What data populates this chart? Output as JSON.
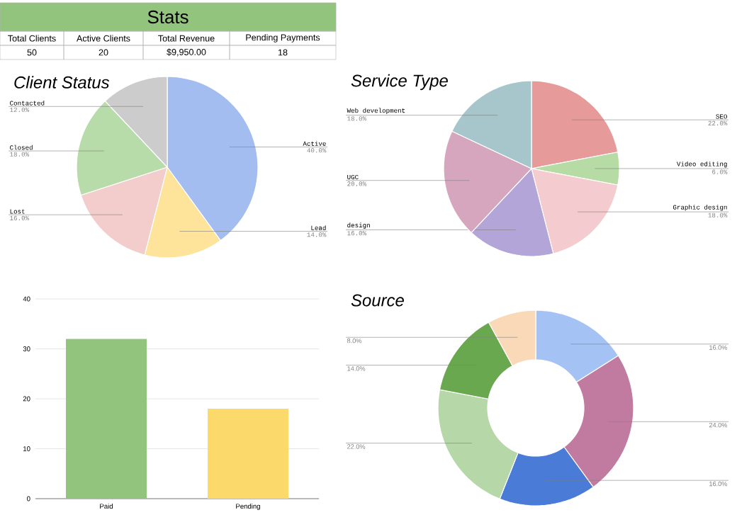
{
  "chart_data": [
    {
      "type": "other",
      "title": "Stats",
      "color": "#93c47d",
      "categories": [
        "Total Clients",
        "Active Clients",
        "Total Revenue",
        "Pending Payments"
      ],
      "value_labels": [
        "50",
        "20",
        "$9,950.00",
        "18"
      ]
    },
    {
      "type": "pie",
      "title": "Client Status",
      "categories": [
        "Active",
        "Lead",
        "Lost",
        "Closed",
        "Contacted"
      ],
      "values": [
        40,
        14,
        16,
        18,
        12
      ],
      "value_labels": [
        "40.0%",
        "14.0%",
        "16.0%",
        "18.0%",
        "12.0%"
      ],
      "colors": [
        "#a4bdf0",
        "#fde49a",
        "#f3cccc",
        "#b7dba9",
        "#cccccc"
      ]
    },
    {
      "type": "pie",
      "title": "Service Type",
      "categories": [
        "SEO",
        "Video editing",
        "Graphic design",
        "design",
        "UGC",
        "Web development"
      ],
      "values": [
        22,
        6,
        18,
        16,
        20,
        18
      ],
      "value_labels": [
        "22.0%",
        "6.0%",
        "18.0%",
        "16.0%",
        "20.0%",
        "18.0%"
      ],
      "colors": [
        "#e69a9a",
        "#b6dba5",
        "#f4cccf",
        "#b3a5d7",
        "#d5a6bd",
        "#a7c6cc"
      ]
    },
    {
      "type": "bar",
      "categories": [
        "Paid",
        "Pending"
      ],
      "values": [
        32,
        18
      ],
      "colors": [
        "#93c47d",
        "#fbd96a"
      ],
      "ylim": [
        0,
        40
      ],
      "yticks": [
        0,
        10,
        20,
        30,
        40
      ],
      "grid": "y"
    },
    {
      "type": "donut",
      "title": "Source",
      "categories": [
        null,
        null,
        null,
        null,
        null,
        null
      ],
      "values": [
        16,
        24,
        16,
        22,
        14,
        8
      ],
      "value_labels": [
        "16.0%",
        "24.0%",
        "16.0%",
        "22.0%",
        "14.0%",
        "8.0%"
      ],
      "colors": [
        "#a4c2f4",
        "#c27ba0",
        "#4a7bd6",
        "#b6d7a8",
        "#6aa84f",
        "#f9d9b8"
      ]
    }
  ]
}
